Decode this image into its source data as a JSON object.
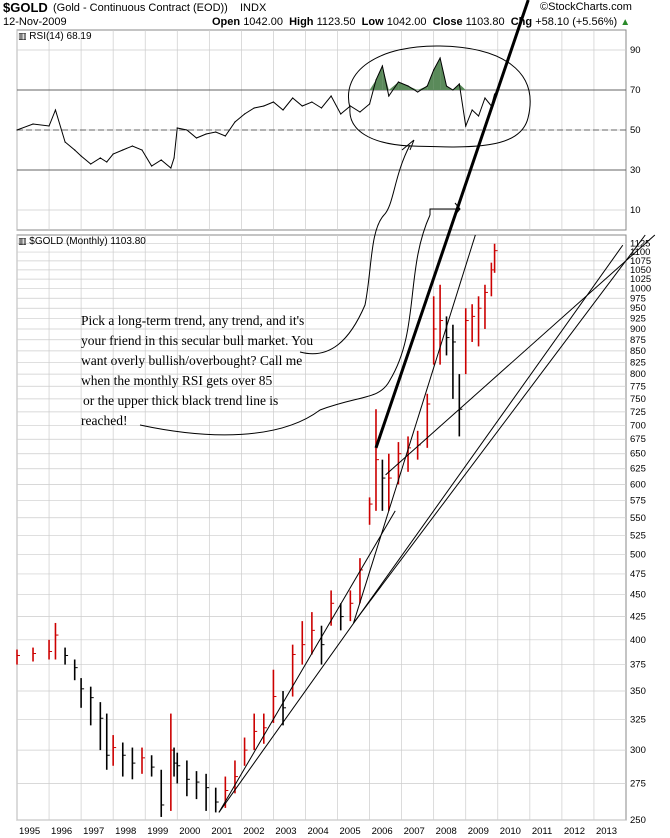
{
  "header": {
    "symbol": "$GOLD",
    "description": "(Gold - Continuous Contract (EOD))",
    "index": "INDX",
    "date": "12-Nov-2009",
    "open_label": "Open",
    "open": "1042.00",
    "high_label": "High",
    "high": "1123.50",
    "low_label": "Low",
    "low": "1042.00",
    "close_label": "Close",
    "close": "1103.80",
    "chg_label": "Chg",
    "chg": "+58.10 (+5.56%)",
    "watermark": "©StockCharts.com"
  },
  "annotation": {
    "lines": [
      "Pick a long-term trend, any trend, and it's",
      "your friend in this secular bull market. You",
      "want overly bullish/overbought? Call me",
      "when the monthly RSI gets over 85",
      "or the upper thick black trend line is",
      "reached!"
    ]
  },
  "colors": {
    "up_bar": "#cc0000",
    "down_bar": "#000000",
    "rsi_line": "#000000",
    "rsi_overbought_fill": "#5a8a5a",
    "rsi_oversold_fill": "#cc8888",
    "grid": "#cccccc",
    "trendline": "#000000"
  },
  "chart_data": [
    {
      "type": "line",
      "title": "RSI(14) 68.19",
      "legend": "RSI(14) 68.19",
      "ylim": [
        0,
        100
      ],
      "yticks": [
        10,
        30,
        50,
        70,
        90
      ],
      "reference_lines": [
        30,
        50,
        70
      ],
      "x_unit": "year",
      "x": [
        1995.0,
        1995.5,
        1996.0,
        1996.2,
        1996.5,
        1996.8,
        1997.0,
        1997.3,
        1997.6,
        1997.8,
        1998.0,
        1998.3,
        1998.6,
        1998.9,
        1999.2,
        1999.5,
        1999.8,
        1999.9,
        2000.0,
        2000.3,
        2000.6,
        2000.9,
        2001.2,
        2001.5,
        2001.8,
        2002.1,
        2002.4,
        2002.7,
        2003.0,
        2003.3,
        2003.6,
        2003.9,
        2004.2,
        2004.5,
        2004.8,
        2005.1,
        2005.4,
        2005.7,
        2006.0,
        2006.2,
        2006.4,
        2006.6,
        2006.9,
        2007.2,
        2007.5,
        2007.8,
        2008.0,
        2008.2,
        2008.4,
        2008.6,
        2008.8,
        2009.0,
        2009.2,
        2009.4,
        2009.6,
        2009.8,
        2009.9
      ],
      "values": [
        50,
        53,
        52,
        60,
        44,
        40,
        37,
        33,
        36,
        34,
        38,
        40,
        42,
        40,
        32,
        35,
        31,
        36,
        51,
        50,
        46,
        48,
        49,
        47,
        54,
        58,
        61,
        62,
        64,
        60,
        66,
        62,
        64,
        61,
        67,
        58,
        62,
        59,
        63,
        75,
        82,
        67,
        74,
        72,
        69,
        72,
        80,
        86,
        72,
        70,
        73,
        52,
        60,
        57,
        66,
        62,
        68
      ]
    },
    {
      "type": "bar",
      "title": "$GOLD (Monthly) 1103.80",
      "legend": "$GOLD (Monthly) 1103.80",
      "scale": "log",
      "ylim": [
        250,
        1150
      ],
      "yticks": [
        250,
        275,
        300,
        325,
        350,
        375,
        400,
        425,
        450,
        475,
        500,
        525,
        550,
        575,
        600,
        625,
        650,
        675,
        700,
        725,
        750,
        775,
        800,
        825,
        850,
        875,
        900,
        925,
        950,
        975,
        1000,
        1025,
        1050,
        1075,
        1100,
        1125
      ],
      "x_unit": "year",
      "xlim": [
        1995.0,
        2014.0
      ],
      "xticks": [
        "1995",
        "1996",
        "1997",
        "1998",
        "1999",
        "2000",
        "2001",
        "2002",
        "2003",
        "2004",
        "2005",
        "2006",
        "2007",
        "2008",
        "2009",
        "2010",
        "2011",
        "2012",
        "2013"
      ],
      "x": [
        1995.0,
        1995.5,
        1996.0,
        1996.2,
        1996.5,
        1996.8,
        1997.0,
        1997.3,
        1997.6,
        1997.8,
        1998.0,
        1998.3,
        1998.6,
        1998.9,
        1999.2,
        1999.5,
        1999.8,
        1999.9,
        2000.0,
        2000.3,
        2000.6,
        2000.9,
        2001.2,
        2001.5,
        2001.8,
        2002.1,
        2002.4,
        2002.7,
        2003.0,
        2003.3,
        2003.6,
        2003.9,
        2004.2,
        2004.5,
        2004.8,
        2005.1,
        2005.4,
        2005.7,
        2006.0,
        2006.2,
        2006.4,
        2006.6,
        2006.9,
        2007.2,
        2007.5,
        2007.8,
        2008.0,
        2008.2,
        2008.4,
        2008.6,
        2008.8,
        2009.0,
        2009.2,
        2009.4,
        2009.6,
        2009.8,
        2009.9
      ],
      "close": [
        384,
        386,
        388,
        405,
        384,
        372,
        352,
        344,
        326,
        296,
        302,
        296,
        290,
        294,
        287,
        260,
        300,
        290,
        288,
        278,
        276,
        272,
        262,
        270,
        280,
        300,
        315,
        318,
        345,
        335,
        385,
        395,
        410,
        395,
        440,
        425,
        440,
        480,
        570,
        640,
        610,
        610,
        650,
        660,
        665,
        740,
        900,
        920,
        880,
        870,
        730,
        920,
        930,
        950,
        990,
        1050,
        1104
      ],
      "high": [
        390,
        392,
        400,
        418,
        392,
        380,
        362,
        354,
        340,
        330,
        312,
        306,
        302,
        302,
        296,
        285,
        330,
        302,
        298,
        292,
        284,
        282,
        272,
        280,
        292,
        310,
        330,
        330,
        370,
        350,
        395,
        420,
        430,
        415,
        455,
        440,
        455,
        495,
        580,
        730,
        640,
        650,
        670,
        680,
        690,
        760,
        980,
        1010,
        930,
        910,
        800,
        950,
        960,
        980,
        1010,
        1070,
        1124
      ],
      "low": [
        375,
        378,
        380,
        380,
        375,
        360,
        335,
        320,
        300,
        285,
        288,
        280,
        278,
        282,
        280,
        252,
        256,
        280,
        275,
        266,
        264,
        256,
        255,
        258,
        268,
        288,
        300,
        305,
        322,
        320,
        345,
        375,
        385,
        375,
        415,
        410,
        420,
        440,
        540,
        560,
        560,
        560,
        600,
        620,
        640,
        660,
        820,
        820,
        840,
        750,
        680,
        800,
        870,
        860,
        900,
        980,
        1042
      ]
    }
  ]
}
